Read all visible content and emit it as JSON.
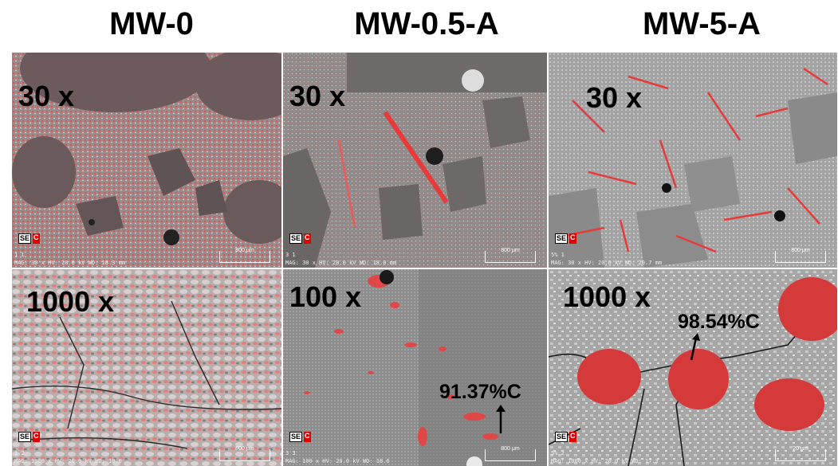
{
  "columns": [
    {
      "title": "MW-0"
    },
    {
      "title": "MW-0.5-A"
    },
    {
      "title": "MW-5-A"
    }
  ],
  "panels": {
    "r1c1": {
      "mag": "30 x",
      "index": "1 1",
      "meta": "MAG: 30 x  HV: 20.0 kV  WD: 18.3 mm",
      "scale": "800 µm"
    },
    "r1c2": {
      "mag": "30 x",
      "index": "3 1",
      "meta": "MAG: 30 x  HV: 20.0 kV  WD: 18.0 mm",
      "scale": "800 µm"
    },
    "r1c3": {
      "mag": "30 x",
      "index": "5% 1",
      "meta": "MAG: 30 x  HV: 20.0 kV  WD: 20.7 mm",
      "scale": "800 µm"
    },
    "r2c1": {
      "mag": "1000 x",
      "index": "1 2",
      "meta": "MAG: 1000 x  HV: 20.0 kV  WD: 18.0",
      "scale": "800 µm"
    },
    "r2c2": {
      "mag": "100 x",
      "index": "3 3",
      "meta": "MAG: 100 x  HV: 20.0 kV  WD: 18.6",
      "scale": "800 µm",
      "annotation": "91.37%C"
    },
    "r2c3": {
      "mag": "1000 x",
      "index": "5% 2",
      "meta": "MAG: 1000 x  HV: 20.0 kV  WD: 17.3",
      "scale": "20 µm",
      "annotation": "98.54%C"
    }
  },
  "labels": {
    "se": "SE",
    "c": "C"
  },
  "colors": {
    "carbon_map": "#e83a3a",
    "matrix": "#8e8e8e"
  }
}
